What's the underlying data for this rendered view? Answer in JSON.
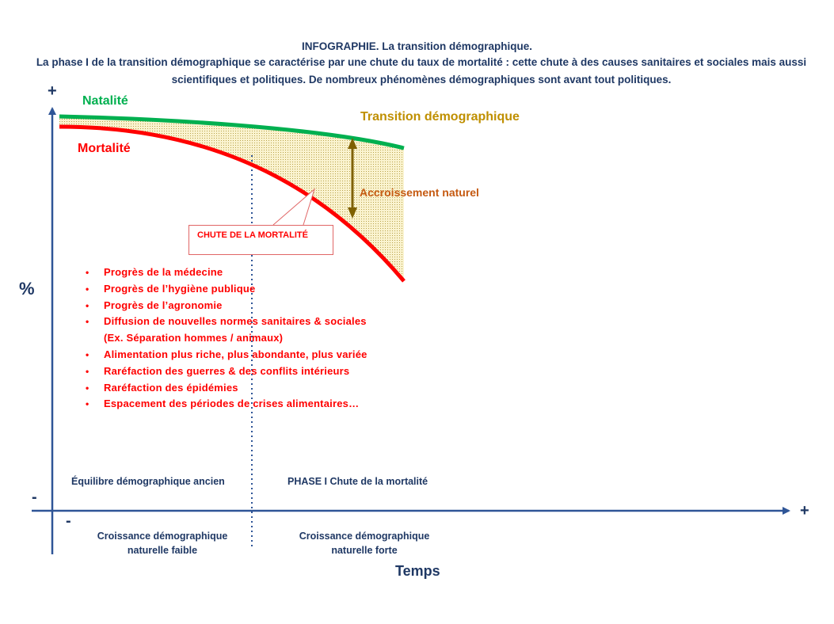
{
  "header": {
    "title": "INFOGRAPHIE. La transition démographique.",
    "subtitle": "La phase I de la transition démographique se caractérise par une chute du taux de mortalité : cette chute à des causes sanitaires et sociales mais aussi scientifiques et politiques. De nombreux phénomènes démographiques sont avant tout politiques."
  },
  "curves": {
    "natalite": "Natalité",
    "mortalite": "Mortalité",
    "transition": "Transition démographique",
    "accroissement": "Accroissement naturel",
    "callout": "CHUTE DE LA MORTALITÉ"
  },
  "axes": {
    "y_plus": "+",
    "y_minus": "-",
    "y_label": "%",
    "x_plus": "+",
    "x_minus": "-",
    "x_label": "Temps"
  },
  "factors": [
    "Progrès de la médecine",
    "Progrès de l’hygiène publique",
    "Progrès de l’agronomie",
    "Diffusion de nouvelles normes sanitaires & sociales",
    "(Ex. Séparation hommes / animaux)",
    "Alimentation plus riche, plus abondante, plus variée",
    "Raréfaction des guerres & des conflits intérieurs",
    "Raréfaction des épidémies",
    "Espacement des périodes de crises alimentaires…"
  ],
  "phases": {
    "phase0": "Équilibre démographique ancien",
    "phase1": "PHASE I Chute de la mortalité",
    "croissance0_line1": "Croissance démographique",
    "croissance0_line2": "naturelle faible",
    "croissance1_line1": "Croissance démographique",
    "croissance1_line2": "naturelle forte"
  },
  "colors": {
    "natalite": "#00b050",
    "mortalite": "#ff0000",
    "transition": "#bf8f00",
    "accroissement": "#c55a11",
    "axis": "#2f5597",
    "text": "#1f3864",
    "fill": "#f2e6a6"
  }
}
